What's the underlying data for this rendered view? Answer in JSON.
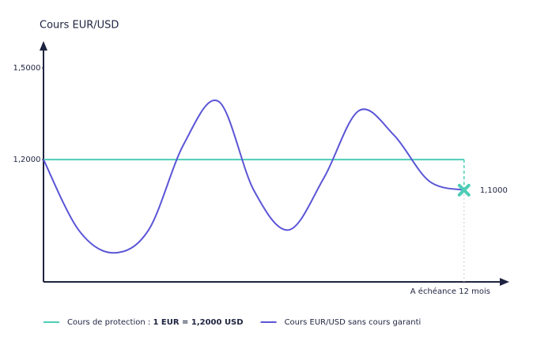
{
  "chart_data": {
    "type": "line",
    "title": "Cours EUR/USD",
    "x_label": "A échéance 12 mois",
    "x": [
      0,
      1,
      2,
      3,
      4,
      5,
      6,
      7,
      8,
      9,
      10,
      11,
      12
    ],
    "xlim": [
      0,
      13.2
    ],
    "ylim": [
      0.8,
      1.58
    ],
    "yticks": [
      {
        "value": 1.5,
        "label": "1,5000"
      },
      {
        "value": 1.2,
        "label": "1,2000"
      }
    ],
    "series": [
      {
        "name": "Cours de protection :",
        "name_emphasis": "1 EUR = 1,2000 USD",
        "color": "#4dcdb6",
        "values": [
          1.2,
          1.2,
          1.2,
          1.2,
          1.2,
          1.2,
          1.2,
          1.2,
          1.2,
          1.2,
          1.2,
          1.2,
          1.2
        ]
      },
      {
        "name": "Cours EUR/USD sans cours garanti",
        "color": "#5a55d6",
        "values": [
          1.2,
          0.97,
          0.895,
          0.97,
          1.25,
          1.39,
          1.1,
          0.97,
          1.14,
          1.36,
          1.28,
          1.13,
          1.1
        ]
      }
    ],
    "annotation": {
      "text": "1,1000",
      "x": 12,
      "y": 1.1
    }
  }
}
